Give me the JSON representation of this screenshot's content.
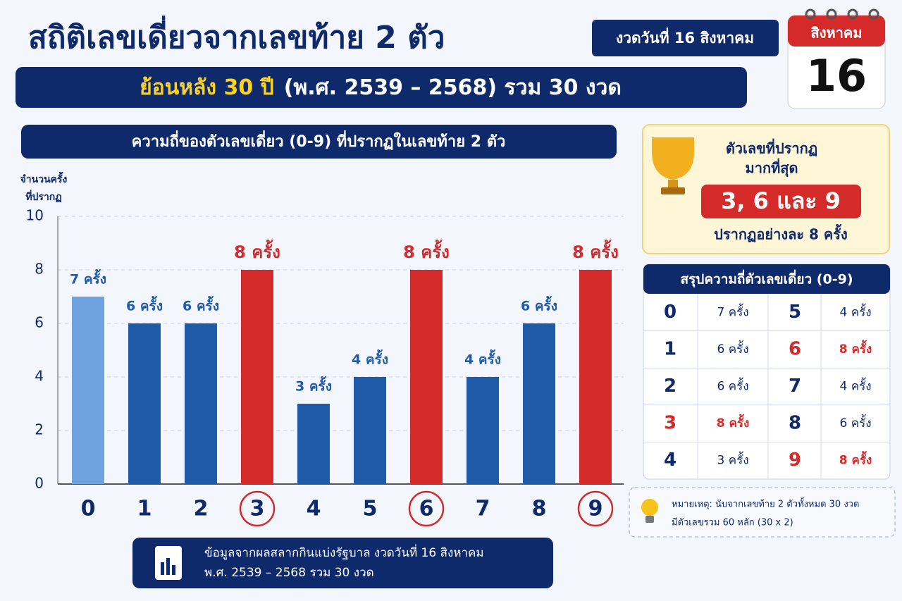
{
  "header": {
    "title": "สถิติเลขเดี่ยวจากเลขท้าย 2 ตัว",
    "badge": "งวดวันที่ 16 สิงหาคม",
    "subtitle_highlight": "ย้อนหลัง 30 ปี",
    "subtitle_rest": "(พ.ศ. 2539 – 2568) รวม 30 งวด",
    "calendar_month": "สิงหาคม",
    "calendar_day": "16"
  },
  "chart_data": {
    "type": "bar",
    "title": "ความถี่ของตัวเลขเดี่ยว (0-9) ที่ปรากฏในเลขท้าย 2 ตัว",
    "ylabel": [
      "จำนวนครั้ง",
      "ที่ปรากฏ"
    ],
    "categories": [
      "0",
      "1",
      "2",
      "3",
      "4",
      "5",
      "6",
      "7",
      "8",
      "9"
    ],
    "values": [
      7,
      6,
      6,
      8,
      3,
      4,
      8,
      4,
      6,
      8
    ],
    "value_labels": [
      "7 ครั้ง",
      "6 ครั้ง",
      "6 ครั้ง",
      "8 ครั้ง",
      "3 ครั้ง",
      "4 ครั้ง",
      "8 ครั้ง",
      "4 ครั้ง",
      "6 ครั้ง",
      "8 ครั้ง"
    ],
    "colors": [
      "#6fa3e0",
      "#1f5ba8",
      "#1f5ba8",
      "#d42a2a",
      "#1f5ba8",
      "#1f5ba8",
      "#d42a2a",
      "#1f5ba8",
      "#1f5ba8",
      "#d42a2a"
    ],
    "highlight_color": "#d42a2a",
    "label_color": "#1f5ba8",
    "ylim": [
      0,
      10
    ],
    "yticks": [
      0,
      2,
      4,
      6,
      8,
      10
    ],
    "grid": true
  },
  "source": {
    "line1": "ข้อมูลจากผลสลากกินแบ่งรัฐบาล งวดวันที่ 16 สิงหาคม",
    "line2": "พ.ศ. 2539 – 2568 รวม 30 งวด"
  },
  "top_box": {
    "line1": "ตัวเลขที่ปรากฏ",
    "line2": "มากที่สุด",
    "numbers": "3, 6 และ 9",
    "caption": "ปรากฏอย่างละ 8 ครั้ง"
  },
  "table": {
    "title": "สรุปความถี่ตัวเลขเดี่ยว (0-9)",
    "rows": [
      [
        "0",
        "7 ครั้ง",
        "5",
        "4 ครั้ง"
      ],
      [
        "1",
        "6 ครั้ง",
        "6",
        "8 ครั้ง"
      ],
      [
        "2",
        "6 ครั้ง",
        "7",
        "4 ครั้ง"
      ],
      [
        "3",
        "8 ครั้ง",
        "8",
        "6 ครั้ง"
      ],
      [
        "4",
        "3 ครั้ง",
        "9",
        "8 ครั้ง"
      ]
    ]
  },
  "note": {
    "line1": "หมายเหตุ: นับจากเลขท้าย 2 ตัวทั้งหมด 30 งวด",
    "line2": "มีตัวเลขรวม 60 หลัก (30 x 2)"
  }
}
